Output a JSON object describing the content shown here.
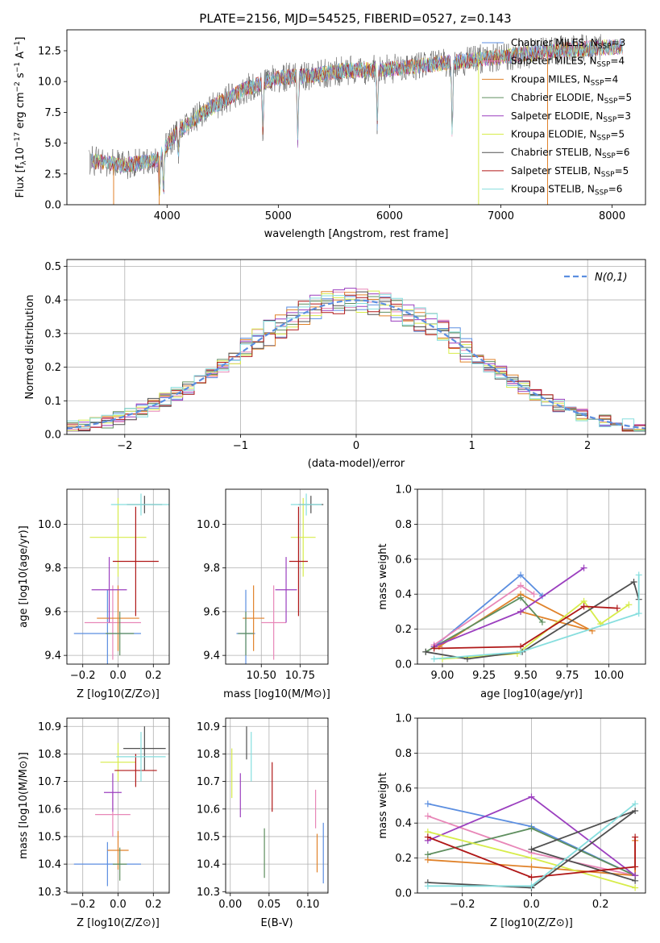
{
  "chart_data": [
    {
      "id": "spectrum",
      "type": "line",
      "title": "PLATE=2156, MJD=54525, FIBERID=0527, z=0.143",
      "xlabel": "wavelength [Angstrom, rest frame]",
      "ylabel": "Flux [f$_\\lambda$10$^{-17}$ erg cm$^{-2}$ s$^{-1}$ A$^{-1}$]",
      "ylabel_parts": [
        "Flux [f",
        "λ",
        "10",
        "−17",
        " erg cm",
        "−2",
        " s",
        "−1",
        " A",
        "−1",
        "]"
      ],
      "xlim": [
        3100,
        8300
      ],
      "ylim": [
        0,
        14.2
      ],
      "xticks": [
        4000,
        5000,
        6000,
        7000,
        8000
      ],
      "yticks": [
        0.0,
        2.5,
        5.0,
        7.5,
        10.0,
        12.5
      ],
      "ytick_labels": [
        "0.0",
        "2.5",
        "5.0",
        "7.5",
        "10.0",
        "12.5"
      ],
      "legend_position": "top-right",
      "x_range_data": [
        3300,
        8100
      ],
      "shape_profile": [
        [
          3300,
          3.6
        ],
        [
          3600,
          3.2
        ],
        [
          3900,
          3.6
        ],
        [
          4100,
          6.0
        ],
        [
          4400,
          7.9
        ],
        [
          4700,
          9.4
        ],
        [
          5000,
          10.3
        ],
        [
          5300,
          10.5
        ],
        [
          5600,
          10.9
        ],
        [
          6000,
          11.0
        ],
        [
          6400,
          11.4
        ],
        [
          6800,
          11.8
        ],
        [
          7200,
          12.2
        ],
        [
          7600,
          12.6
        ],
        [
          8000,
          12.8
        ]
      ],
      "series": [
        {
          "name": "Chabrier MILES, N$_{SSP}$=3",
          "name_parts": [
            "Chabrier MILES, N",
            "SSP",
            "=3"
          ],
          "color": "#5b8ee0"
        },
        {
          "name": "Salpeter MILES, N$_{SSP}$=4",
          "name_parts": [
            "Salpeter MILES, N",
            "SSP",
            "=4"
          ],
          "color": "#e887b8"
        },
        {
          "name": "Kroupa MILES, N$_{SSP}$=4",
          "name_parts": [
            "Kroupa MILES, N",
            "SSP",
            "=4"
          ],
          "color": "#e0822a"
        },
        {
          "name": "Chabrier ELODIE, N$_{SSP}$=5",
          "name_parts": [
            "Chabrier ELODIE, N",
            "SSP",
            "=5"
          ],
          "color": "#5f8f5f"
        },
        {
          "name": "Salpeter ELODIE, N$_{SSP}$=3",
          "name_parts": [
            "Salpeter ELODIE, N",
            "SSP",
            "=3"
          ],
          "color": "#9b3fbf"
        },
        {
          "name": "Kroupa ELODIE, N$_{SSP}$=5",
          "name_parts": [
            "Kroupa ELODIE, N",
            "SSP",
            "=5"
          ],
          "color": "#d7ec4a"
        },
        {
          "name": "Chabrier STELIB, N$_{SSP}$=6",
          "name_parts": [
            "Chabrier STELIB, N",
            "SSP",
            "=6"
          ],
          "color": "#505050"
        },
        {
          "name": "Salpeter STELIB, N$_{SSP}$=5",
          "name_parts": [
            "Salpeter STELIB, N",
            "SSP",
            "=5"
          ],
          "color": "#b01818"
        },
        {
          "name": "Kroupa STELIB, N$_{SSP}$=6",
          "name_parts": [
            "Kroupa STELIB, N",
            "SSP",
            "=6"
          ],
          "color": "#86dede"
        }
      ]
    },
    {
      "id": "residuals",
      "type": "bar",
      "xlabel": "(data-model)/error",
      "ylabel": "Normed distribution",
      "xlim": [
        -2.5,
        2.5
      ],
      "ylim": [
        0,
        0.52
      ],
      "xticks": [
        -2,
        -1,
        0,
        1,
        2
      ],
      "xtick_labels": [
        "−2",
        "−1",
        "0",
        "1",
        "2"
      ],
      "yticks": [
        0.0,
        0.1,
        0.2,
        0.3,
        0.4,
        0.5
      ],
      "ytick_labels": [
        "0.0",
        "0.1",
        "0.2",
        "0.3",
        "0.4",
        "0.5"
      ],
      "bin_width": 0.1,
      "legend": {
        "label": "N(0,1)",
        "color": "#5b8ee0",
        "position": "top-right"
      },
      "overlay": "standard normal pdf, dashed"
    },
    {
      "id": "age-vs-Z",
      "type": "scatter",
      "xlabel": "Z [log10(Z/Z⊙)]",
      "ylabel": "age  [log10(age/yr)]",
      "xlim": [
        -0.29,
        0.29
      ],
      "ylim": [
        9.36,
        10.16
      ],
      "xticks": [
        -0.2,
        0.0,
        0.2
      ],
      "xtick_labels": [
        "−0.2",
        "0.0",
        "0.2"
      ],
      "yticks": [
        9.4,
        9.6,
        9.8,
        10.0
      ],
      "ytick_labels": [
        "9.4",
        "9.6",
        "9.8",
        "10.0"
      ],
      "points": [
        {
          "color": "#5b8ee0",
          "x": -0.06,
          "xerr": 0.19,
          "y": 9.5,
          "yerr": 0.2
        },
        {
          "color": "#e887b8",
          "x": -0.03,
          "xerr": 0.16,
          "y": 9.55,
          "yerr": 0.17
        },
        {
          "color": "#e0822a",
          "x": 0.0,
          "xerr": 0.12,
          "y": 9.57,
          "yerr": 0.15
        },
        {
          "color": "#5f8f5f",
          "x": 0.01,
          "xerr": 0.08,
          "y": 9.5,
          "yerr": 0.1
        },
        {
          "color": "#9b3fbf",
          "x": -0.05,
          "xerr": 0.1,
          "y": 9.7,
          "yerr": 0.15
        },
        {
          "color": "#d7ec4a",
          "x": 0.0,
          "xerr": 0.16,
          "y": 9.94,
          "yerr": 0.18
        },
        {
          "color": "#505050",
          "x": 0.15,
          "xerr": 0.1,
          "y": 10.09,
          "yerr": 0.04
        },
        {
          "color": "#b01818",
          "x": 0.1,
          "xerr": 0.13,
          "y": 9.83,
          "yerr": 0.25
        },
        {
          "color": "#86dede",
          "x": 0.13,
          "xerr": 0.17,
          "y": 10.09,
          "yerr": 0.05
        }
      ]
    },
    {
      "id": "age-vs-mass",
      "type": "scatter",
      "xlabel": "mass [log10(M/M⊙)]",
      "ylabel": "",
      "xlim": [
        10.27,
        10.93
      ],
      "ylim": [
        9.36,
        10.16
      ],
      "xticks": [
        10.5,
        10.75
      ],
      "xtick_labels": [
        "10.50",
        "10.75"
      ],
      "yticks": [
        9.4,
        9.6,
        9.8,
        10.0
      ],
      "ytick_labels": [
        "9.4",
        "9.6",
        "9.8",
        "10.0"
      ],
      "points": [
        {
          "color": "#5b8ee0",
          "x": 10.4,
          "xerr": 0.06,
          "y": 9.5,
          "yerr": 0.2
        },
        {
          "color": "#e887b8",
          "x": 10.58,
          "xerr": 0.08,
          "y": 9.55,
          "yerr": 0.17
        },
        {
          "color": "#e0822a",
          "x": 10.45,
          "xerr": 0.07,
          "y": 9.57,
          "yerr": 0.15
        },
        {
          "color": "#5f8f5f",
          "x": 10.4,
          "xerr": 0.05,
          "y": 9.5,
          "yerr": 0.1
        },
        {
          "color": "#9b3fbf",
          "x": 10.66,
          "xerr": 0.07,
          "y": 9.7,
          "yerr": 0.15
        },
        {
          "color": "#d7ec4a",
          "x": 10.77,
          "xerr": 0.08,
          "y": 9.94,
          "yerr": 0.18
        },
        {
          "color": "#505050",
          "x": 10.82,
          "xerr": 0.08,
          "y": 10.09,
          "yerr": 0.04
        },
        {
          "color": "#b01818",
          "x": 10.74,
          "xerr": 0.06,
          "y": 9.83,
          "yerr": 0.25
        },
        {
          "color": "#86dede",
          "x": 10.79,
          "xerr": 0.1,
          "y": 10.09,
          "yerr": 0.05
        }
      ]
    },
    {
      "id": "weight-vs-age",
      "type": "line",
      "xlabel": "age  [log10(age/yr)]",
      "ylabel": "mass weight",
      "xlim": [
        8.85,
        10.22
      ],
      "ylim": [
        0,
        1.0
      ],
      "xticks": [
        9.0,
        9.25,
        9.5,
        9.75,
        10.0
      ],
      "xtick_labels": [
        "9.00",
        "9.25",
        "9.50",
        "9.75",
        "10.00"
      ],
      "yticks": [
        0.0,
        0.2,
        0.4,
        0.6,
        0.8,
        1.0
      ],
      "ytick_labels": [
        "0.0",
        "0.2",
        "0.4",
        "0.6",
        "0.8",
        "1.0"
      ],
      "series": [
        {
          "color": "#5b8ee0",
          "x": [
            8.95,
            9.47,
            9.6
          ],
          "y": [
            0.1,
            0.51,
            0.39
          ]
        },
        {
          "color": "#e887b8",
          "x": [
            8.95,
            9.47,
            9.55
          ],
          "y": [
            0.11,
            0.45,
            0.4
          ]
        },
        {
          "color": "#e0822a",
          "x": [
            8.98,
            9.47,
            9.9,
            9.47
          ],
          "y": [
            0.1,
            0.4,
            0.19,
            0.3
          ]
        },
        {
          "color": "#5f8f5f",
          "x": [
            8.9,
            9.47,
            9.6
          ],
          "y": [
            0.07,
            0.38,
            0.24
          ]
        },
        {
          "color": "#9b3fbf",
          "x": [
            8.95,
            9.47,
            9.85
          ],
          "y": [
            0.1,
            0.3,
            0.55
          ]
        },
        {
          "color": "#d7ec4a",
          "x": [
            9.0,
            9.45,
            9.85,
            9.95,
            10.12
          ],
          "y": [
            0.03,
            0.06,
            0.36,
            0.23,
            0.34
          ]
        },
        {
          "color": "#505050",
          "x": [
            8.9,
            9.15,
            9.48,
            10.15,
            10.18
          ],
          "y": [
            0.07,
            0.03,
            0.07,
            0.47,
            0.37
          ]
        },
        {
          "color": "#b01818",
          "x": [
            8.95,
            9.47,
            9.85,
            10.05
          ],
          "y": [
            0.09,
            0.1,
            0.33,
            0.32
          ]
        },
        {
          "color": "#86dede",
          "x": [
            8.95,
            9.47,
            10.18,
            10.18
          ],
          "y": [
            0.03,
            0.07,
            0.29,
            0.51
          ]
        }
      ]
    },
    {
      "id": "mass-vs-Z",
      "type": "scatter",
      "xlabel": "Z [log10(Z/Z⊙)]",
      "ylabel": "mass [log10(M/M⊙)]",
      "xlim": [
        -0.29,
        0.29
      ],
      "ylim": [
        10.295,
        10.93
      ],
      "xticks": [
        -0.2,
        0.0,
        0.2
      ],
      "xtick_labels": [
        "−0.2",
        "0.0",
        "0.2"
      ],
      "yticks": [
        10.3,
        10.4,
        10.5,
        10.6,
        10.7,
        10.8,
        10.9
      ],
      "ytick_labels": [
        "10.3",
        "10.4",
        "10.5",
        "10.6",
        "10.7",
        "10.8",
        "10.9"
      ],
      "points": [
        {
          "color": "#5b8ee0",
          "x": -0.06,
          "xerr": 0.19,
          "y": 10.4,
          "yerr": 0.08
        },
        {
          "color": "#e887b8",
          "x": -0.03,
          "xerr": 0.1,
          "y": 10.58,
          "yerr": 0.08
        },
        {
          "color": "#e0822a",
          "x": 0.0,
          "xerr": 0.06,
          "y": 10.45,
          "yerr": 0.07
        },
        {
          "color": "#5f8f5f",
          "x": 0.01,
          "xerr": 0.04,
          "y": 10.4,
          "yerr": 0.06
        },
        {
          "color": "#9b3fbf",
          "x": -0.03,
          "xerr": 0.05,
          "y": 10.66,
          "yerr": 0.07
        },
        {
          "color": "#d7ec4a",
          "x": 0.0,
          "xerr": 0.1,
          "y": 10.77,
          "yerr": 0.07
        },
        {
          "color": "#505050",
          "x": 0.15,
          "xerr": 0.12,
          "y": 10.82,
          "yerr": 0.08
        },
        {
          "color": "#b01818",
          "x": 0.1,
          "xerr": 0.12,
          "y": 10.74,
          "yerr": 0.06
        },
        {
          "color": "#86dede",
          "x": 0.13,
          "xerr": 0.14,
          "y": 10.79,
          "yerr": 0.09
        }
      ]
    },
    {
      "id": "mass-vs-ebv",
      "type": "scatter",
      "xlabel": "E(B-V)",
      "ylabel": "",
      "xlim": [
        -0.006,
        0.126
      ],
      "ylim": [
        10.295,
        10.93
      ],
      "xticks": [
        0.0,
        0.05,
        0.1
      ],
      "xtick_labels": [
        "0.00",
        "0.05",
        "0.10"
      ],
      "yticks": [
        10.3,
        10.4,
        10.5,
        10.6,
        10.7,
        10.8,
        10.9
      ],
      "ytick_labels": [
        "10.3",
        "10.4",
        "10.5",
        "10.6",
        "10.7",
        "10.8",
        "10.9"
      ],
      "points": [
        {
          "color": "#5b8ee0",
          "x": 0.12,
          "xerr": 0,
          "y": 10.44,
          "yerr": 0.11
        },
        {
          "color": "#e887b8",
          "x": 0.11,
          "xerr": 0,
          "y": 10.6,
          "yerr": 0.07
        },
        {
          "color": "#e0822a",
          "x": 0.112,
          "xerr": 0,
          "y": 10.44,
          "yerr": 0.07
        },
        {
          "color": "#5f8f5f",
          "x": 0.044,
          "xerr": 0,
          "y": 10.44,
          "yerr": 0.09
        },
        {
          "color": "#9b3fbf",
          "x": 0.013,
          "xerr": 0,
          "y": 10.65,
          "yerr": 0.08
        },
        {
          "color": "#d7ec4a",
          "x": 0.002,
          "xerr": 0,
          "y": 10.73,
          "yerr": 0.09
        },
        {
          "color": "#505050",
          "x": 0.021,
          "xerr": 0,
          "y": 10.84,
          "yerr": 0.06
        },
        {
          "color": "#b01818",
          "x": 0.054,
          "xerr": 0,
          "y": 10.68,
          "yerr": 0.09
        },
        {
          "color": "#86dede",
          "x": 0.027,
          "xerr": 0,
          "y": 10.79,
          "yerr": 0.09
        }
      ]
    },
    {
      "id": "weight-vs-Z",
      "type": "line",
      "xlabel": "Z [log10(Z/Z⊙)]",
      "ylabel": "mass weight",
      "xlim": [
        -0.33,
        0.33
      ],
      "ylim": [
        0,
        1.0
      ],
      "xticks": [
        -0.2,
        0.0,
        0.2
      ],
      "xtick_labels": [
        "−0.2",
        "0.0",
        "0.2"
      ],
      "yticks": [
        0.0,
        0.2,
        0.4,
        0.6,
        0.8,
        1.0
      ],
      "ytick_labels": [
        "0.0",
        "0.2",
        "0.4",
        "0.6",
        "0.8",
        "1.0"
      ],
      "series": [
        {
          "color": "#5b8ee0",
          "x": [
            -0.3,
            0.0,
            0.3
          ],
          "y": [
            0.51,
            0.38,
            0.1
          ]
        },
        {
          "color": "#e887b8",
          "x": [
            -0.3,
            0.0,
            0.3
          ],
          "y": [
            0.44,
            0.23,
            0.1
          ]
        },
        {
          "color": "#e0822a",
          "x": [
            -0.3,
            0.0,
            0.3,
            0.3
          ],
          "y": [
            0.19,
            0.15,
            0.1,
            0.3
          ]
        },
        {
          "color": "#5f8f5f",
          "x": [
            -0.3,
            0.0,
            0.3
          ],
          "y": [
            0.22,
            0.37,
            0.1
          ]
        },
        {
          "color": "#9b3fbf",
          "x": [
            -0.3,
            0.0,
            0.3
          ],
          "y": [
            0.3,
            0.55,
            0.1
          ]
        },
        {
          "color": "#d7ec4a",
          "x": [
            -0.3,
            0.0,
            0.3
          ],
          "y": [
            0.35,
            0.2,
            0.03
          ]
        },
        {
          "color": "#505050",
          "x": [
            -0.3,
            0.0,
            0.3,
            0.0,
            0.3
          ],
          "y": [
            0.06,
            0.03,
            0.47,
            0.25,
            0.07
          ]
        },
        {
          "color": "#b01818",
          "x": [
            -0.3,
            0.0,
            0.3,
            0.3
          ],
          "y": [
            0.32,
            0.09,
            0.15,
            0.32
          ]
        },
        {
          "color": "#86dede",
          "x": [
            -0.3,
            0.0,
            0.3
          ],
          "y": [
            0.04,
            0.04,
            0.51
          ]
        }
      ]
    }
  ]
}
